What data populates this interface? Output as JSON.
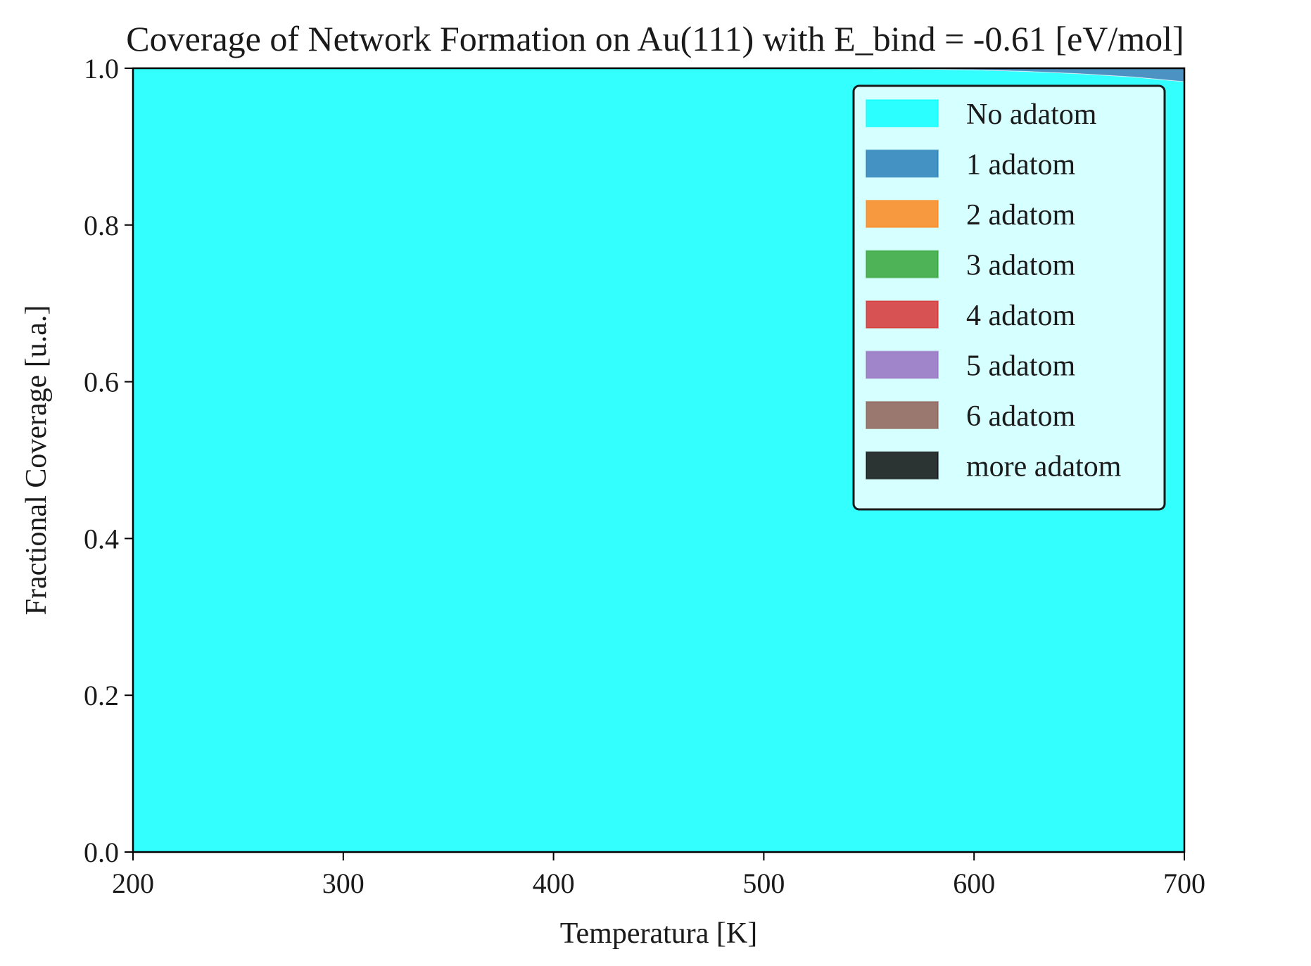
{
  "chart_data": {
    "type": "area",
    "stacked": true,
    "title": "Coverage of Network Formation on Au(111) with E_bind = -0.61 [eV/mol]",
    "xlabel": "Temperatura [K]",
    "ylabel": "Fractional Coverage [u.a.]",
    "xlim": [
      200,
      700
    ],
    "ylim": [
      0,
      1
    ],
    "xticks": [
      "200",
      "300",
      "400",
      "500",
      "600",
      "700"
    ],
    "yticks": [
      "0.0",
      "0.2",
      "0.4",
      "0.6",
      "0.8",
      "1.0"
    ],
    "grid": false,
    "legend_position": "top-right",
    "x": [
      200,
      250,
      300,
      350,
      400,
      450,
      500,
      550,
      575,
      600,
      625,
      650,
      675,
      700
    ],
    "series": [
      {
        "name": "No adatom",
        "color": "#00ffff",
        "values": [
          1.0,
          1.0,
          1.0,
          1.0,
          1.0,
          1.0,
          1.0,
          0.9995,
          0.999,
          0.998,
          0.996,
          0.993,
          0.989,
          0.983
        ]
      },
      {
        "name": "1 adatom",
        "color": "#1f77b4",
        "values": [
          0,
          0,
          0,
          0,
          0,
          0,
          0,
          0.0005,
          0.001,
          0.002,
          0.004,
          0.007,
          0.011,
          0.017
        ]
      },
      {
        "name": "2 adatom",
        "color": "#ff7f0e",
        "values": [
          0,
          0,
          0,
          0,
          0,
          0,
          0,
          0,
          0,
          0,
          0,
          0,
          0,
          0
        ]
      },
      {
        "name": "3 adatom",
        "color": "#2ca02c",
        "values": [
          0,
          0,
          0,
          0,
          0,
          0,
          0,
          0,
          0,
          0,
          0,
          0,
          0,
          0
        ]
      },
      {
        "name": "4 adatom",
        "color": "#d62728",
        "values": [
          0,
          0,
          0,
          0,
          0,
          0,
          0,
          0,
          0,
          0,
          0,
          0,
          0,
          0
        ]
      },
      {
        "name": "5 adatom",
        "color": "#9467bd",
        "values": [
          0,
          0,
          0,
          0,
          0,
          0,
          0,
          0,
          0,
          0,
          0,
          0,
          0,
          0
        ]
      },
      {
        "name": "6 adatom",
        "color": "#8c564b",
        "values": [
          0,
          0,
          0,
          0,
          0,
          0,
          0,
          0,
          0,
          0,
          0,
          0,
          0,
          0
        ]
      },
      {
        "name": "more adatom",
        "color": "#000000",
        "values": [
          0,
          0,
          0,
          0,
          0,
          0,
          0,
          0,
          0,
          0,
          0,
          0,
          0,
          0
        ]
      }
    ]
  }
}
